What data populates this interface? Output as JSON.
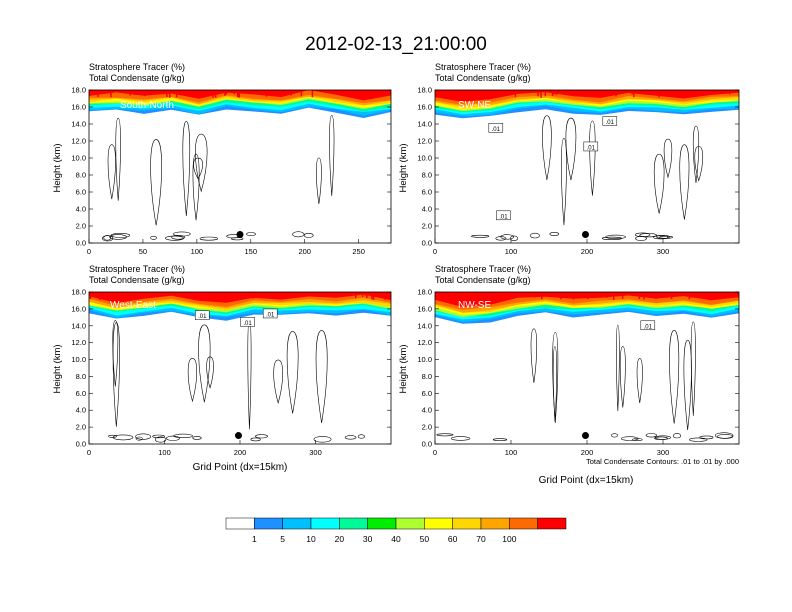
{
  "figure": {
    "title": "2012-02-13_21:00:00",
    "contour_note": "Total Condensate Contours: .01 to .01 by .000",
    "colors": {
      "levels": [
        "#ffffff",
        "#1e90ff",
        "#00bfff",
        "#00ffff",
        "#00fa9a",
        "#00ee00",
        "#adff2f",
        "#ffff00",
        "#ffd700",
        "#ffa500",
        "#ff6a00",
        "#ff0000"
      ]
    }
  },
  "colorbar": {
    "labels": [
      "1",
      "5",
      "10",
      "20",
      "30",
      "40",
      "50",
      "60",
      "70",
      "100"
    ]
  },
  "chart_data": [
    {
      "type": "heatmap",
      "region": "South-North",
      "subtitle_left": "Stratosphere Tracer   (%)",
      "subtitle_left2": "Total Condensate   (g/kg)",
      "ylabel": "Height (km)",
      "xlabel": "",
      "xlim": [
        0,
        280
      ],
      "ylim": [
        0,
        18
      ],
      "xticks": [
        "0",
        "50",
        "100",
        "150",
        "200",
        "250"
      ],
      "xtick_values": [
        0,
        50,
        100,
        150,
        200,
        250
      ],
      "yticks": [
        "0.0",
        "2.0",
        "4.0",
        "6.0",
        "8.0",
        "10.0",
        "12.0",
        "14.0",
        "16.0",
        "18.0"
      ],
      "tropopause_km": [
        15.4,
        15.6,
        15.3,
        15.7,
        15.0,
        15.8,
        15.5,
        15.2,
        15.9,
        15.4,
        14.8,
        15.3
      ],
      "marker": {
        "x": 140,
        "y": 1.0
      },
      "contour_labels": []
    },
    {
      "type": "heatmap",
      "region": "SW-NE",
      "subtitle_left": "Stratosphere Tracer   (%)",
      "subtitle_left2": "Total Condensate   (g/kg)",
      "ylabel": "Height (km)",
      "xlabel": "",
      "xlim": [
        0,
        400
      ],
      "ylim": [
        0,
        18
      ],
      "xticks": [
        "0",
        "100",
        "200",
        "300"
      ],
      "xtick_values": [
        0,
        100,
        200,
        300
      ],
      "yticks": [
        "0.0",
        "2.0",
        "4.0",
        "6.0",
        "8.0",
        "10.0",
        "12.0",
        "14.0",
        "16.0",
        "18.0"
      ],
      "tropopause_km": [
        15.2,
        14.6,
        14.9,
        15.5,
        15.8,
        15.3,
        15.0,
        15.6,
        15.4,
        15.1,
        15.5,
        15.7
      ],
      "marker": {
        "x": 198,
        "y": 1.0
      },
      "contour_labels": [
        {
          "text": ".01",
          "x": 80,
          "y": 13.5
        },
        {
          "text": ".01",
          "x": 230,
          "y": 14.3
        },
        {
          "text": ".01",
          "x": 205,
          "y": 11.3
        },
        {
          "text": ".01",
          "x": 90,
          "y": 3.2
        }
      ]
    },
    {
      "type": "heatmap",
      "region": "West-East",
      "subtitle_left": "Stratosphere Tracer   (%)",
      "subtitle_left2": "Total Condensate   (g/kg)",
      "ylabel": "Height (km)",
      "xlabel": "Grid Point (dx=15km)",
      "xlim": [
        0,
        400
      ],
      "ylim": [
        0,
        18
      ],
      "xticks": [
        "0",
        "100",
        "200",
        "300"
      ],
      "xtick_values": [
        0,
        100,
        200,
        300
      ],
      "yticks": [
        "0.0",
        "2.0",
        "4.0",
        "6.0",
        "8.0",
        "10.0",
        "12.0",
        "14.0",
        "16.0",
        "18.0"
      ],
      "tropopause_km": [
        15.5,
        14.8,
        15.2,
        15.6,
        15.0,
        14.7,
        15.4,
        15.2,
        15.5,
        15.3,
        15.6,
        15.1
      ],
      "marker": {
        "x": 198,
        "y": 1.0
      },
      "contour_labels": [
        {
          "text": ".01",
          "x": 150,
          "y": 15.2
        },
        {
          "text": ".01",
          "x": 240,
          "y": 15.4
        },
        {
          "text": ".01",
          "x": 210,
          "y": 14.4
        }
      ]
    },
    {
      "type": "heatmap",
      "region": "NW-SE",
      "subtitle_left": "Stratosphere Tracer   (%)",
      "subtitle_left2": "Total Condensate   (g/kg)",
      "ylabel": "Height (km)",
      "xlabel": "Grid Point (dx=15km)",
      "xlim": [
        0,
        400
      ],
      "ylim": [
        0,
        18
      ],
      "xticks": [
        "0",
        "100",
        "200",
        "300"
      ],
      "xtick_values": [
        0,
        100,
        200,
        300
      ],
      "yticks": [
        "0.0",
        "2.0",
        "4.0",
        "6.0",
        "8.0",
        "10.0",
        "12.0",
        "14.0",
        "16.0",
        "18.0"
      ],
      "tropopause_km": [
        15.0,
        14.2,
        14.5,
        15.2,
        15.5,
        15.1,
        15.3,
        15.6,
        15.2,
        15.4,
        15.0,
        15.5
      ],
      "marker": {
        "x": 198,
        "y": 1.0
      },
      "contour_labels": [
        {
          "text": ".01",
          "x": 280,
          "y": 14.0
        }
      ]
    }
  ]
}
